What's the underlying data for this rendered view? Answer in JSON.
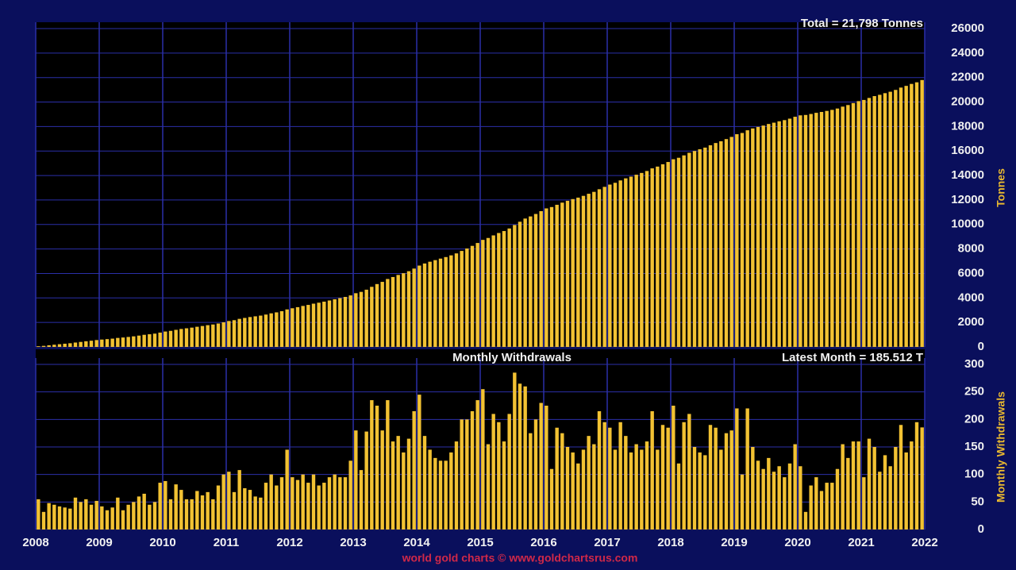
{
  "chart_data": [
    {
      "type": "bar",
      "annotation": "Total = 21,798 Tonnes",
      "y_label": "Tonnes",
      "color": "#f2c233",
      "grid": true,
      "xlim": [
        2008,
        2022
      ],
      "xticks": [
        2008,
        2009,
        2010,
        2011,
        2012,
        2013,
        2014,
        2015,
        2016,
        2017,
        2018,
        2019,
        2020,
        2021,
        2022
      ],
      "ylim": [
        0,
        26000
      ],
      "yticks": [
        0,
        2000,
        4000,
        6000,
        8000,
        10000,
        12000,
        14000,
        16000,
        18000,
        20000,
        22000,
        24000,
        26000
      ],
      "values": [
        55,
        87,
        135,
        180,
        222,
        262,
        300,
        358,
        408,
        463,
        508,
        560,
        602,
        637,
        677,
        735,
        770,
        815,
        865,
        925,
        990,
        1035,
        1085,
        1170,
        1258,
        1313,
        1395,
        1467,
        1522,
        1577,
        1647,
        1709,
        1777,
        1832,
        1912,
        2012,
        2117,
        2185,
        2293,
        2368,
        2440,
        2500,
        2558,
        2643,
        2743,
        2823,
        2918,
        3063,
        3158,
        3248,
        3348,
        3433,
        3533,
        3613,
        3698,
        3793,
        3893,
        3988,
        4083,
        4208,
        4388,
        4496,
        4674,
        4909,
        5134,
        5314,
        5549,
        5709,
        5879,
        6019,
        6184,
        6399,
        6644,
        6814,
        6959,
        7089,
        7214,
        7339,
        7479,
        7639,
        7839,
        8039,
        8254,
        8489,
        8744,
        8899,
        9109,
        9304,
        9464,
        9674,
        9959,
        10224,
        10484,
        10659,
        10859,
        11089,
        11314,
        11424,
        11609,
        11784,
        11934,
        12074,
        12194,
        12339,
        12509,
        12664,
        12879,
        13074,
        13259,
        13404,
        13599,
        13769,
        13909,
        14064,
        14209,
        14369,
        14584,
        14729,
        14919,
        15104,
        15329,
        15449,
        15644,
        15854,
        16004,
        16144,
        16279,
        16469,
        16654,
        16799,
        16974,
        17154,
        17374,
        17474,
        17694,
        17844,
        17969,
        18079,
        18209,
        18314,
        18429,
        18524,
        18644,
        18799,
        18914,
        18946,
        19026,
        19121,
        19191,
        19276,
        19361,
        19471,
        19626,
        19756,
        19916,
        20076,
        20171,
        20336,
        20486,
        20591,
        20726,
        20841,
        20991,
        21181,
        21321,
        21481,
        21612,
        21798
      ]
    },
    {
      "type": "bar",
      "title": "Monthly Withdrawals",
      "annotation": "Latest Month = 185.512 T",
      "y_label": "Monthly Withdrawals",
      "color": "#f2c233",
      "grid": true,
      "xlim": [
        2008,
        2022
      ],
      "xticks": [
        2008,
        2009,
        2010,
        2011,
        2012,
        2013,
        2014,
        2015,
        2016,
        2017,
        2018,
        2019,
        2020,
        2021,
        2022
      ],
      "ylim": [
        0,
        300
      ],
      "yticks": [
        0,
        50,
        100,
        150,
        200,
        250,
        300
      ],
      "values": [
        55,
        32,
        48,
        45,
        42,
        40,
        38,
        58,
        50,
        55,
        45,
        52,
        42,
        35,
        40,
        58,
        35,
        45,
        50,
        60,
        65,
        45,
        50,
        85,
        88,
        55,
        82,
        72,
        55,
        55,
        70,
        62,
        68,
        55,
        80,
        100,
        105,
        68,
        108,
        75,
        72,
        60,
        58,
        85,
        100,
        80,
        95,
        145,
        95,
        90,
        100,
        85,
        100,
        80,
        85,
        95,
        100,
        95,
        95,
        125,
        180,
        108,
        178,
        235,
        225,
        180,
        235,
        160,
        170,
        140,
        165,
        215,
        245,
        170,
        145,
        130,
        125,
        125,
        140,
        160,
        200,
        200,
        215,
        235,
        255,
        155,
        210,
        195,
        160,
        210,
        285,
        265,
        260,
        175,
        200,
        230,
        225,
        110,
        185,
        175,
        150,
        140,
        120,
        145,
        170,
        155,
        215,
        195,
        185,
        145,
        195,
        170,
        140,
        155,
        145,
        160,
        215,
        145,
        190,
        185,
        225,
        120,
        195,
        210,
        150,
        140,
        135,
        190,
        185,
        145,
        175,
        180,
        220,
        100,
        220,
        150,
        125,
        110,
        130,
        105,
        115,
        95,
        120,
        155,
        115,
        32,
        80,
        95,
        70,
        85,
        85,
        110,
        155,
        130,
        160,
        160,
        95,
        165,
        150,
        105,
        135,
        115,
        150,
        190,
        140,
        160,
        195,
        185.512
      ]
    }
  ],
  "credit": "world gold charts © www.goldchartsrus.com"
}
